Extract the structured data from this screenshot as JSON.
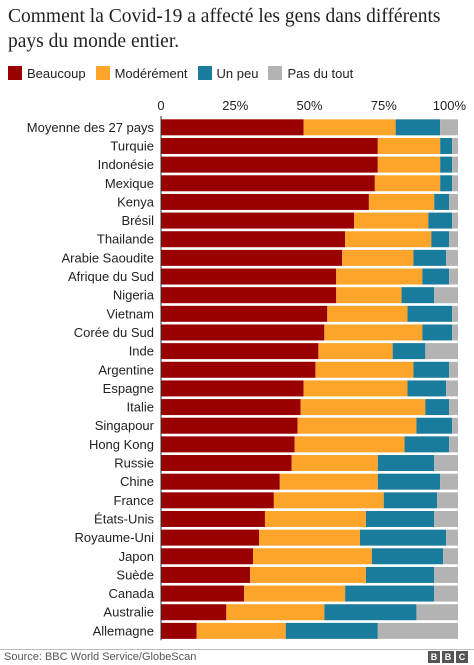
{
  "header": {
    "title": "Comment la Covid-19 a affecté les gens dans différents pays du monde entier."
  },
  "legend": [
    {
      "label": "Beaucoup",
      "color": "#990000"
    },
    {
      "label": "Modérément",
      "color": "#fdA52b"
    },
    {
      "label": "Un peu",
      "color": "#1a7c9c"
    },
    {
      "label": "Pas du tout",
      "color": "#b3b3b3"
    }
  ],
  "footer": {
    "source": "Source: BBC World Service/GlobeScan",
    "logo_letters": [
      "B",
      "B",
      "C"
    ]
  },
  "chart_data": {
    "type": "bar",
    "orientation": "horizontal",
    "stacked": true,
    "title": "Comment la Covid-19 a affecté les gens dans différents pays du monde entier.",
    "xlim": [
      0,
      100
    ],
    "xticks": [
      "0",
      "25%",
      "50%",
      "75%",
      "100%"
    ],
    "categories": [
      "Moyenne des 27 pays",
      "Turquie",
      "Indonésie",
      "Mexique",
      "Kenya",
      "Brésil",
      "Thailande",
      "Arabie Saoudite",
      "Afrique du Sud",
      "Nigeria",
      "Vietnam",
      "Corée du Sud",
      "Inde",
      "Argentine",
      "Espagne",
      "Italie",
      "Singapour",
      "Hong Kong",
      "Russie",
      "Chine",
      "France",
      "États-Unis",
      "Royaume-Uni",
      "Japon",
      "Suède",
      "Canada",
      "Australie",
      "Allemagne"
    ],
    "series": [
      {
        "name": "Beaucoup",
        "color": "#990000",
        "values": [
          48,
          73,
          73,
          72,
          70,
          65,
          62,
          61,
          59,
          59,
          56,
          55,
          53,
          52,
          48,
          47,
          46,
          45,
          44,
          40,
          38,
          35,
          33,
          31,
          30,
          28,
          22,
          12
        ]
      },
      {
        "name": "Modérément",
        "color": "#fdA52b",
        "values": [
          31,
          21,
          21,
          22,
          22,
          25,
          29,
          24,
          29,
          22,
          27,
          33,
          25,
          33,
          35,
          42,
          40,
          37,
          29,
          33,
          37,
          34,
          34,
          40,
          39,
          34,
          33,
          30
        ]
      },
      {
        "name": "Un peu",
        "color": "#1a7c9c",
        "values": [
          15,
          4,
          4,
          4,
          5,
          8,
          6,
          11,
          9,
          11,
          15,
          10,
          11,
          12,
          13,
          8,
          12,
          15,
          19,
          21,
          18,
          23,
          29,
          24,
          23,
          30,
          31,
          31
        ]
      },
      {
        "name": "Pas du tout",
        "color": "#b3b3b3",
        "values": [
          6,
          2,
          2,
          2,
          3,
          2,
          3,
          4,
          3,
          8,
          2,
          2,
          11,
          3,
          4,
          3,
          2,
          3,
          8,
          6,
          7,
          8,
          4,
          5,
          8,
          8,
          14,
          27
        ]
      }
    ]
  }
}
